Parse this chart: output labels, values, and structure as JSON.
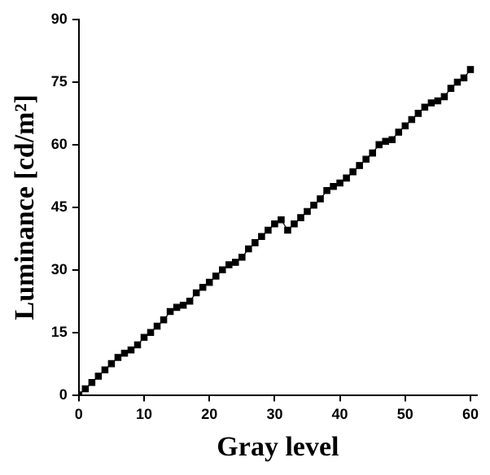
{
  "chart_data": {
    "type": "line",
    "xlabel": "Gray level",
    "ylabel": "Luminance [cd/m²]",
    "x": [
      0,
      1,
      2,
      3,
      4,
      5,
      6,
      7,
      8,
      9,
      10,
      11,
      12,
      13,
      14,
      15,
      16,
      17,
      18,
      19,
      20,
      21,
      22,
      23,
      24,
      25,
      26,
      27,
      28,
      29,
      30,
      31,
      32,
      33,
      34,
      35,
      36,
      37,
      38,
      39,
      40,
      41,
      42,
      43,
      44,
      45,
      46,
      47,
      48,
      49,
      50,
      51,
      52,
      53,
      54,
      55,
      56,
      57,
      58,
      59,
      60
    ],
    "series": [
      {
        "color": "#000000",
        "values": [
          0,
          1.5,
          3,
          4.5,
          6,
          7.5,
          9,
          10,
          10.8,
          12,
          13.8,
          15,
          16.5,
          18,
          20,
          21,
          21.5,
          22.5,
          24.5,
          25.8,
          27,
          28.5,
          30,
          31.2,
          31.8,
          33,
          35,
          36.5,
          38,
          39.5,
          41,
          42,
          39.5,
          41,
          42.5,
          44,
          45.5,
          47,
          49,
          50,
          50.8,
          52,
          53.5,
          55,
          56.5,
          58,
          60,
          60.8,
          61.2,
          63,
          64.5,
          66,
          67.5,
          69,
          70,
          70.5,
          71.5,
          73.5,
          75,
          76,
          78
        ]
      }
    ],
    "xlim": [
      0,
      61
    ],
    "xticks": [
      0,
      10,
      20,
      30,
      40,
      50,
      60
    ],
    "ylim": [
      0,
      90
    ],
    "yticks": [
      0,
      15,
      30,
      45,
      60,
      75,
      90
    ],
    "marker": "square",
    "line_style": "solid",
    "grid": false,
    "legend": false
  }
}
